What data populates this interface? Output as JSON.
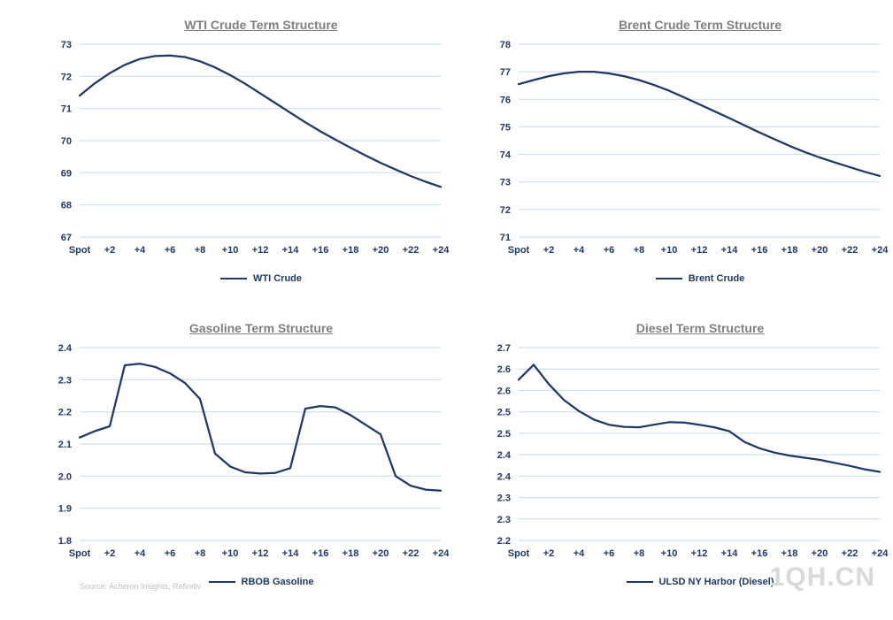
{
  "page": {
    "source_note": "Source: Acheron Insights, Refinitiv",
    "watermark": "1QH.CN"
  },
  "colors": {
    "line": "#1f3864",
    "axis_text": "#1f3864",
    "title": "#7f7f7f",
    "grid": "#c7d9ec",
    "source_text": "#c0c0c0",
    "watermark_text": "#d9d9d9"
  },
  "chart_data": [
    {
      "type": "line",
      "title": "WTI Crude Term Structure",
      "legend": "WTI Crude",
      "legend_position": "bottom",
      "grid": true,
      "x_tick_labels": [
        "Spot",
        "+2",
        "+4",
        "+6",
        "+8",
        "+10",
        "+12",
        "+14",
        "+16",
        "+18",
        "+20",
        "+22",
        "+24"
      ],
      "x_tick_positions": [
        0,
        2,
        4,
        6,
        8,
        10,
        12,
        14,
        16,
        18,
        20,
        22,
        24
      ],
      "x": [
        0,
        1,
        2,
        3,
        4,
        5,
        6,
        7,
        8,
        9,
        10,
        11,
        12,
        13,
        14,
        15,
        16,
        17,
        18,
        19,
        20,
        21,
        22,
        23,
        24
      ],
      "values": [
        71.4,
        71.78,
        72.1,
        72.36,
        72.54,
        72.63,
        72.65,
        72.6,
        72.47,
        72.28,
        72.04,
        71.77,
        71.47,
        71.17,
        70.87,
        70.57,
        70.29,
        70.03,
        69.78,
        69.54,
        69.31,
        69.1,
        68.9,
        68.72,
        68.56
      ],
      "ylim": [
        67,
        73
      ],
      "y_ticks": [
        73,
        72,
        71,
        70,
        69,
        68,
        67
      ]
    },
    {
      "type": "line",
      "title": "Brent Crude Term Structure",
      "legend": "Brent Crude",
      "legend_position": "bottom",
      "grid": true,
      "x_tick_labels": [
        "Spot",
        "+2",
        "+4",
        "+6",
        "+8",
        "+10",
        "+12",
        "+14",
        "+16",
        "+18",
        "+20",
        "+22",
        "+24"
      ],
      "x_tick_positions": [
        0,
        2,
        4,
        6,
        8,
        10,
        12,
        14,
        16,
        18,
        20,
        22,
        24
      ],
      "x": [
        0,
        1,
        2,
        3,
        4,
        5,
        6,
        7,
        8,
        9,
        10,
        11,
        12,
        13,
        14,
        15,
        16,
        17,
        18,
        19,
        20,
        21,
        22,
        23,
        24
      ],
      "values": [
        76.55,
        76.7,
        76.84,
        76.94,
        77.0,
        77.0,
        76.94,
        76.84,
        76.7,
        76.52,
        76.31,
        76.07,
        75.82,
        75.57,
        75.32,
        75.06,
        74.8,
        74.55,
        74.31,
        74.09,
        73.89,
        73.71,
        73.54,
        73.37,
        73.22
      ],
      "ylim": [
        71,
        78
      ],
      "y_ticks": [
        78,
        77,
        76,
        75,
        74,
        73,
        72,
        71
      ]
    },
    {
      "type": "line",
      "title": "Gasoline Term Structure",
      "legend": "RBOB Gasoline",
      "legend_position": "bottom",
      "grid": true,
      "x_tick_labels": [
        "Spot",
        "+2",
        "+4",
        "+6",
        "+8",
        "+10",
        "+12",
        "+14",
        "+16",
        "+18",
        "+20",
        "+22",
        "+24"
      ],
      "x_tick_positions": [
        0,
        2,
        4,
        6,
        8,
        10,
        12,
        14,
        16,
        18,
        20,
        22,
        24
      ],
      "x": [
        0,
        1,
        2,
        3,
        4,
        5,
        6,
        7,
        8,
        9,
        10,
        11,
        12,
        13,
        14,
        15,
        16,
        17,
        18,
        19,
        20,
        21,
        22,
        23,
        24
      ],
      "values": [
        2.12,
        2.14,
        2.155,
        2.345,
        2.35,
        2.34,
        2.32,
        2.29,
        2.24,
        2.07,
        2.03,
        2.012,
        2.008,
        2.01,
        2.025,
        2.21,
        2.218,
        2.214,
        2.19,
        2.16,
        2.13,
        2.0,
        1.97,
        1.958,
        1.955
      ],
      "ylim": [
        1.8,
        2.4
      ],
      "y_ticks": [
        2.4,
        2.3,
        2.2,
        2.1,
        2.0,
        1.9,
        1.8
      ],
      "y_tick_labels": [
        "2.4",
        "2.3",
        "2.2",
        "2.1",
        "2.0",
        "1.9",
        "1.8"
      ]
    },
    {
      "type": "line",
      "title": "Diesel Term Structure",
      "legend": "ULSD NY Harbor (Diesel)",
      "legend_position": "bottom",
      "grid": true,
      "x_tick_labels": [
        "Spot",
        "+2",
        "+4",
        "+6",
        "+8",
        "+10",
        "+12",
        "+14",
        "+16",
        "+18",
        "+20",
        "+22",
        "+24"
      ],
      "x_tick_positions": [
        0,
        2,
        4,
        6,
        8,
        10,
        12,
        14,
        16,
        18,
        20,
        22,
        24
      ],
      "x": [
        0,
        1,
        2,
        3,
        4,
        5,
        6,
        7,
        8,
        9,
        10,
        11,
        12,
        13,
        14,
        15,
        16,
        17,
        18,
        19,
        20,
        21,
        22,
        23,
        24
      ],
      "values": [
        2.625,
        2.66,
        2.615,
        2.578,
        2.552,
        2.532,
        2.52,
        2.515,
        2.514,
        2.52,
        2.526,
        2.525,
        2.52,
        2.514,
        2.505,
        2.48,
        2.465,
        2.455,
        2.448,
        2.443,
        2.438,
        2.431,
        2.424,
        2.416,
        2.41
      ],
      "ylim": [
        2.25,
        2.7
      ],
      "y_ticks": [
        2.7,
        2.65,
        2.6,
        2.55,
        2.5,
        2.45,
        2.4,
        2.35,
        2.3,
        2.25
      ],
      "y_tick_labels": [
        "2.7",
        "2.6",
        "2.6",
        "2.5",
        "2.5",
        "2.4",
        "2.4",
        "2.3",
        "2.3",
        "2.2"
      ]
    }
  ]
}
